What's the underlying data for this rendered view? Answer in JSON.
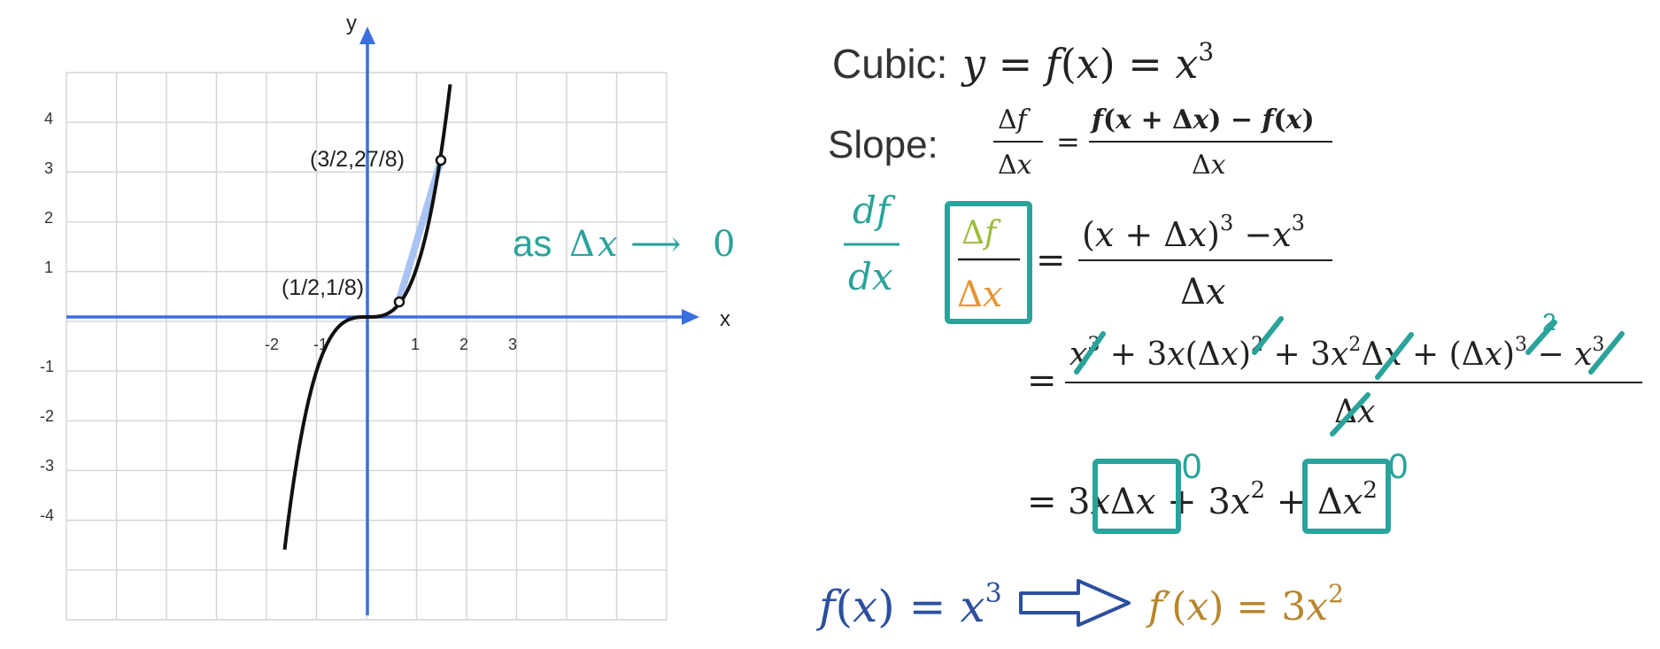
{
  "graph": {
    "x_axis_label": "x",
    "y_axis_label": "y",
    "x_tick_labels": [
      "-2",
      "-1",
      "1",
      "2",
      "3"
    ],
    "y_tick_labels": [
      "4",
      "3",
      "2",
      "1",
      "-1",
      "-2",
      "-3",
      "-4"
    ],
    "curve": "y = x^3",
    "point_a_label": "(3/2,27/8)",
    "point_b_label": "(1/2,1/8)",
    "points": [
      {
        "x": 1.5,
        "y": 3.375
      },
      {
        "x": 0.5,
        "y": 0.125
      }
    ],
    "annotation_as": "as",
    "annotation_delta": "Δ",
    "annotation_x": "x",
    "annotation_arrow": "⟶",
    "annotation_zero": "0"
  },
  "equations": {
    "cubic_label": "Cubic:",
    "slope_label": "Slope:",
    "df": "df",
    "dx": "dx",
    "zero": "0",
    "two": "2"
  },
  "bottom": {
    "left": "f(x) = x",
    "right": "f′(x) = 3x"
  },
  "colors": {
    "teal": "#2aa39a",
    "blue_axis": "#3a6fe0",
    "green": "#9dbb3a",
    "orange": "#e59535",
    "navy": "#2c4f9e",
    "brown": "#b8862c"
  }
}
